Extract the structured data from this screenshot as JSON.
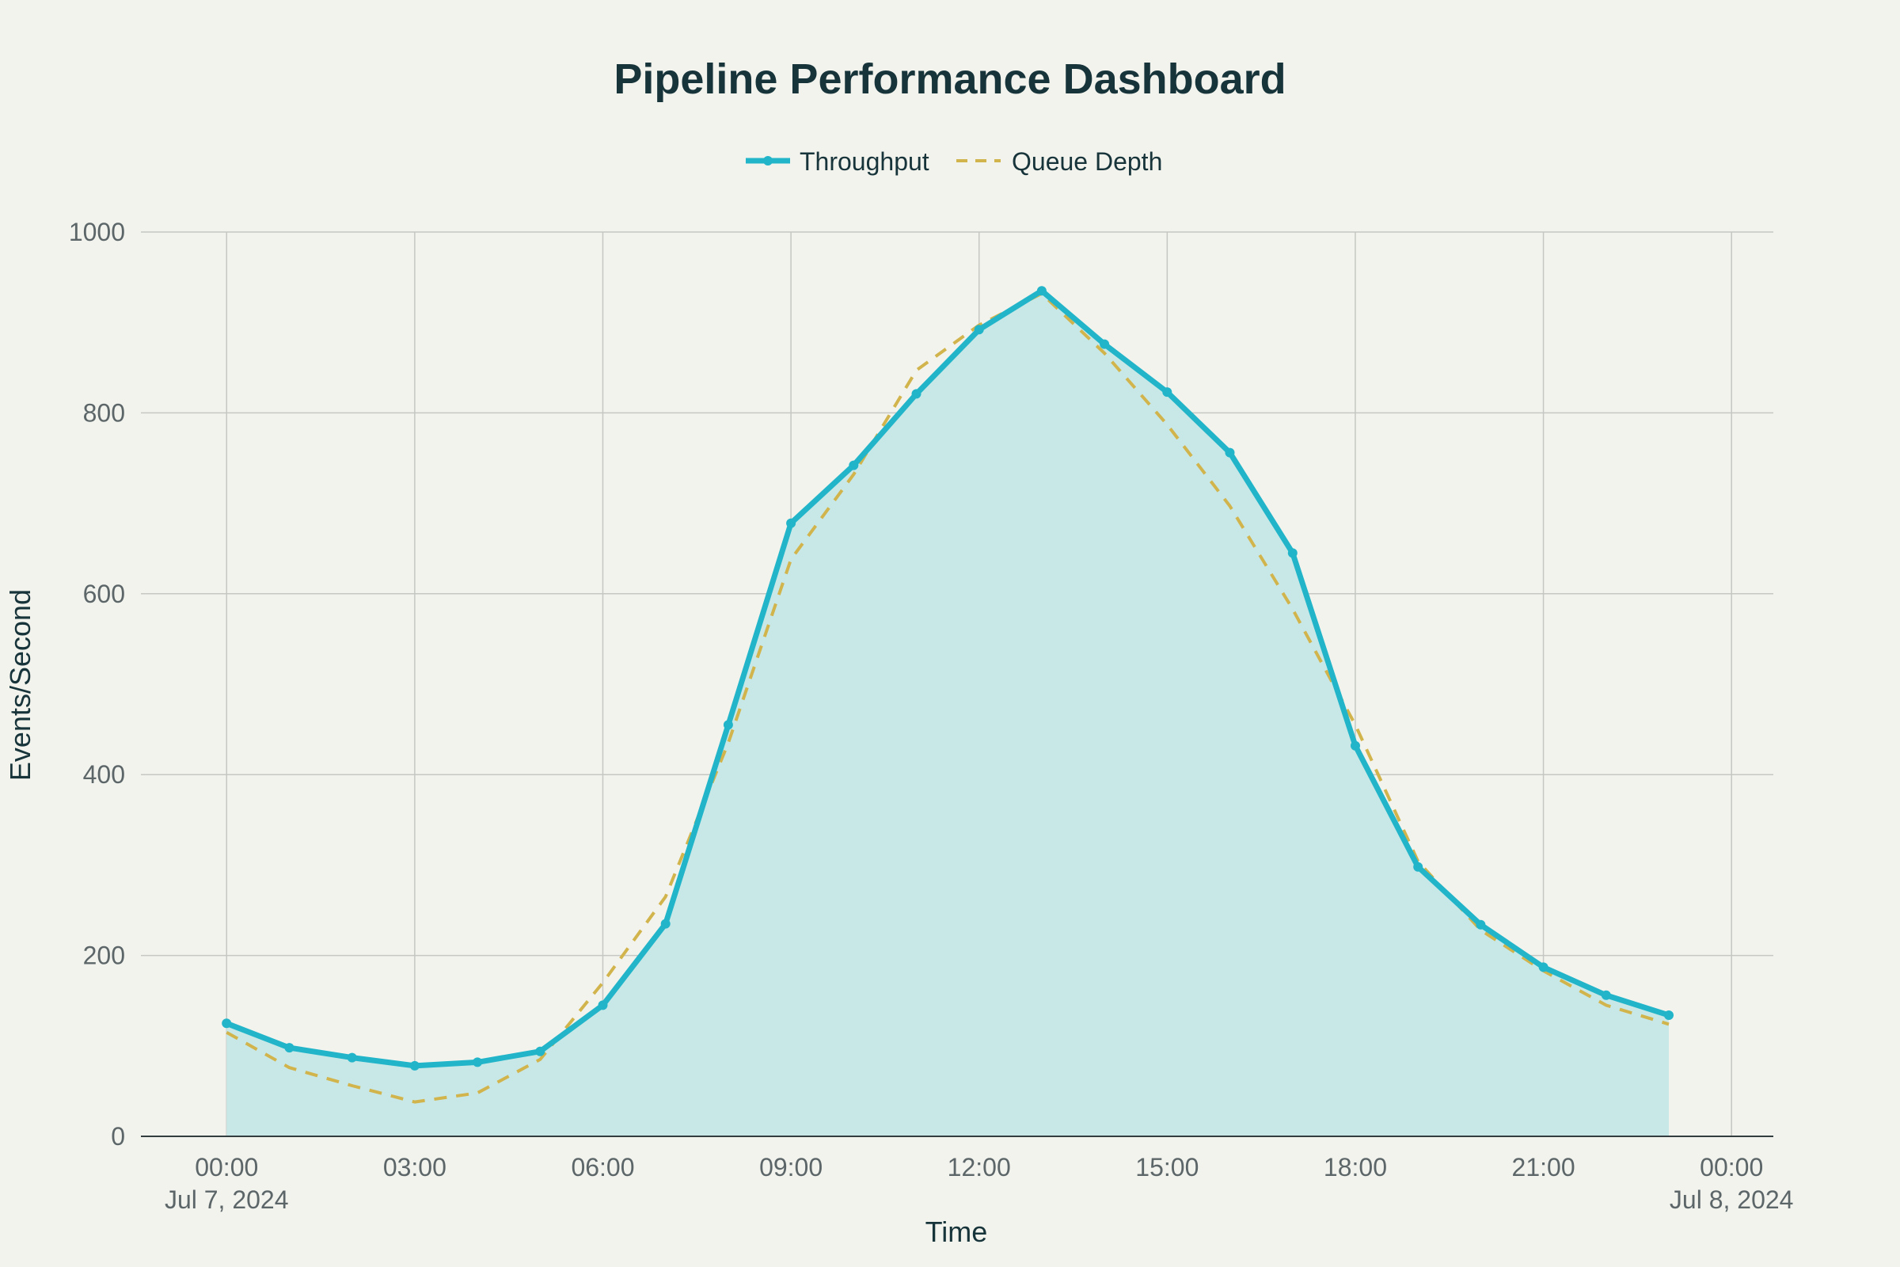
{
  "chart_data": {
    "type": "area",
    "title": "Pipeline Performance Dashboard",
    "xlabel": "Time",
    "ylabel": "Events/Second",
    "xlim": [
      "2024-07-06 22:38",
      "2024-07-08 00:40"
    ],
    "ylim": [
      0,
      1000
    ],
    "x_ticks": [
      {
        "time": "2024-07-07 00:00",
        "label": "00:00",
        "date_label": "Jul 7, 2024"
      },
      {
        "time": "2024-07-07 03:00",
        "label": "03:00",
        "date_label": ""
      },
      {
        "time": "2024-07-07 06:00",
        "label": "06:00",
        "date_label": ""
      },
      {
        "time": "2024-07-07 09:00",
        "label": "09:00",
        "date_label": ""
      },
      {
        "time": "2024-07-07 12:00",
        "label": "12:00",
        "date_label": ""
      },
      {
        "time": "2024-07-07 15:00",
        "label": "15:00",
        "date_label": ""
      },
      {
        "time": "2024-07-07 18:00",
        "label": "18:00",
        "date_label": ""
      },
      {
        "time": "2024-07-07 21:00",
        "label": "21:00",
        "date_label": ""
      },
      {
        "time": "2024-07-08 00:00",
        "label": "00:00",
        "date_label": "Jul 8, 2024"
      }
    ],
    "y_ticks": [
      {
        "value": 0,
        "label": "0"
      },
      {
        "value": 200,
        "label": "200"
      },
      {
        "value": 400,
        "label": "400"
      },
      {
        "value": 600,
        "label": "600"
      },
      {
        "value": 800,
        "label": "800"
      },
      {
        "value": 1000,
        "label": "1000"
      }
    ],
    "x": [
      "2024-07-07 00:00",
      "2024-07-07 01:00",
      "2024-07-07 02:00",
      "2024-07-07 03:00",
      "2024-07-07 04:00",
      "2024-07-07 05:00",
      "2024-07-07 06:00",
      "2024-07-07 07:00",
      "2024-07-07 08:00",
      "2024-07-07 09:00",
      "2024-07-07 10:00",
      "2024-07-07 11:00",
      "2024-07-07 12:00",
      "2024-07-07 13:00",
      "2024-07-07 14:00",
      "2024-07-07 15:00",
      "2024-07-07 16:00",
      "2024-07-07 17:00",
      "2024-07-07 18:00",
      "2024-07-07 19:00",
      "2024-07-07 20:00",
      "2024-07-07 21:00",
      "2024-07-07 22:00",
      "2024-07-07 23:00"
    ],
    "series": [
      {
        "name": "Throughput",
        "style": "solid line with markers, filled area",
        "color": "#22b5c9",
        "fill_color": "#c8e8e7",
        "values": [
          125,
          98,
          87,
          78,
          82,
          94,
          145,
          235,
          455,
          678,
          742,
          821,
          892,
          935,
          876,
          823,
          756,
          645,
          432,
          298,
          234,
          187,
          156,
          134
        ]
      },
      {
        "name": "Queue Depth",
        "style": "dashed line",
        "color": "#d2b44c",
        "values": [
          115,
          76,
          56,
          38,
          48,
          85,
          170,
          265,
          435,
          638,
          732,
          847,
          897,
          932,
          866,
          787,
          697,
          583,
          455,
          304,
          228,
          183,
          145,
          124
        ]
      }
    ],
    "grid": true,
    "legend_position": "top-center",
    "colors": {
      "background": "#f3f3ee",
      "grid": "#c4c7c2",
      "axis_line": "#333d3f",
      "title": "#17343a",
      "tick_text": "#5c6669"
    }
  }
}
